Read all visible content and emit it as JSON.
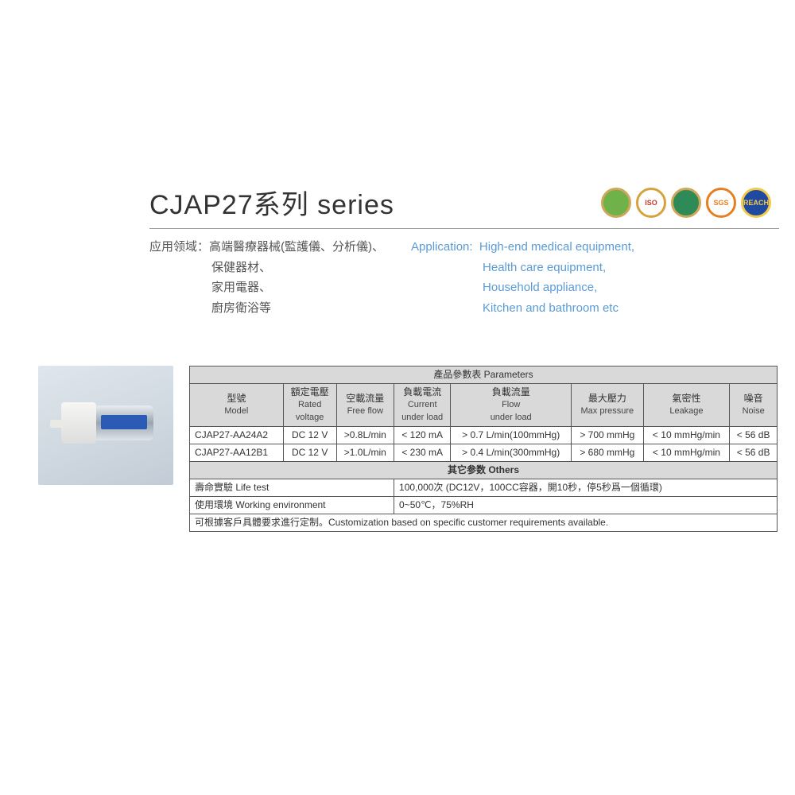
{
  "title": "CJAP27系列 series",
  "badges": [
    {
      "bg": "#6fb24a",
      "ring": "#cfa75a",
      "txt": ""
    },
    {
      "bg": "#ffffff",
      "ring": "#d6a23c",
      "txt": "ISO",
      "fc": "#c1392b"
    },
    {
      "bg": "#2e8b57",
      "ring": "#cfa75a",
      "txt": ""
    },
    {
      "bg": "#ffffff",
      "ring": "#e67e22",
      "txt": "SGS",
      "fc": "#e67e22"
    },
    {
      "bg": "#1f4aa0",
      "ring": "#f2c94c",
      "txt": "REACH",
      "fc": "#f2c94c"
    }
  ],
  "app_cn": {
    "label": "应用领域：",
    "lines": [
      "高端醫療器械(監護儀、分析儀)、",
      "保健器材、",
      "家用電器、",
      "廚房衛浴等"
    ]
  },
  "app_en": {
    "label": "Application:",
    "lines": [
      "High-end medical equipment,",
      "Health care equipment,",
      "Household appliance,",
      "Kitchen and bathroom  etc"
    ]
  },
  "table": {
    "caption": "產品參數表 Parameters",
    "headers": [
      {
        "cn": "型號",
        "en": "Model"
      },
      {
        "cn": "額定電壓",
        "en": "Rated\nvoltage"
      },
      {
        "cn": "空載流量",
        "en": "Free flow"
      },
      {
        "cn": "負載電流",
        "en": "Current\nunder load"
      },
      {
        "cn": "負載流量",
        "en": "Flow\nunder load"
      },
      {
        "cn": "最大壓力",
        "en": "Max pressure"
      },
      {
        "cn": "氣密性",
        "en": "Leakage"
      },
      {
        "cn": "噪音",
        "en": "Noise"
      }
    ],
    "rows": [
      [
        "CJAP27-AA24A2",
        "DC 12 V",
        ">0.8L/min",
        "< 120 mA",
        "> 0.7 L/min(100mmHg)",
        "> 700 mmHg",
        "< 10 mmHg/min",
        "< 56 dB"
      ],
      [
        "CJAP27-AA12B1",
        "DC 12 V",
        ">1.0L/min",
        "< 230 mA",
        "> 0.4 L/min(300mmHg)",
        "> 680 mmHg",
        "< 10 mmHg/min",
        "< 56 dB"
      ]
    ],
    "others_caption": "其它参数 Others",
    "others": [
      {
        "k": "壽命實驗 Life test",
        "v": "100,000次 (DC12V，100CC容器，開10秒，停5秒爲一個循環)"
      },
      {
        "k": "使用環境 Working environment",
        "v": "0~50℃，75%RH"
      }
    ],
    "footnote": "可根據客戶具體要求進行定制。Customization based on specific customer requirements available."
  },
  "colors": {
    "text": "#333333",
    "blue_text": "#5b9bd5",
    "hr": "#999999",
    "th_bg": "#d9d9d9",
    "border": "#555555"
  }
}
